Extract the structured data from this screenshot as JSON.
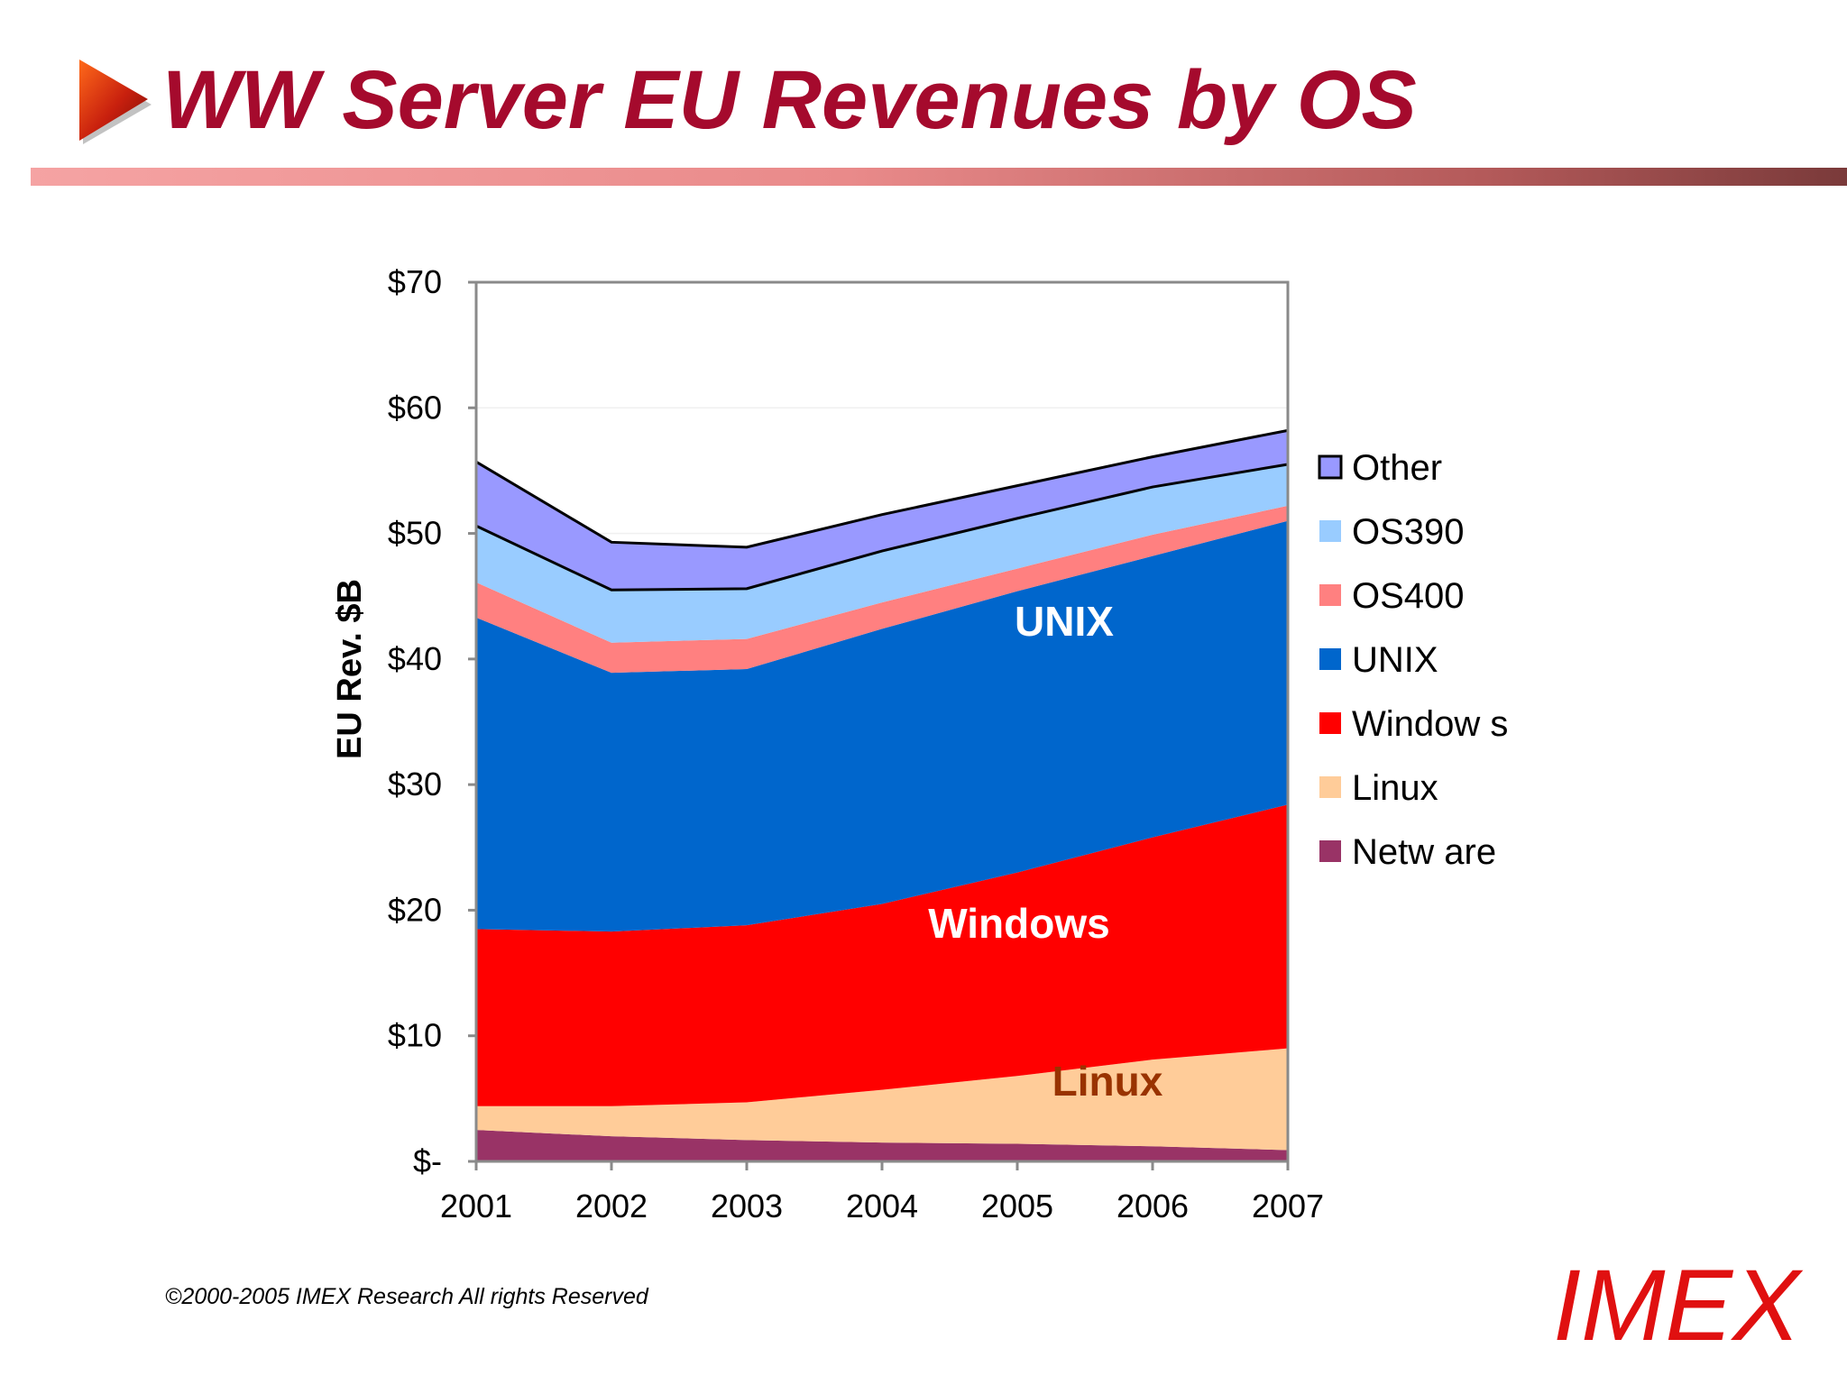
{
  "slide": {
    "title": "WW Server EU Revenues by OS",
    "copyright": "©2000-2005  IMEX Research All rights Reserved",
    "logo_text": "IMEX",
    "title_color": "#a50a2d",
    "logo_color": "#e01010",
    "arrow_icon": "play-triangle-icon"
  },
  "chart_data": {
    "type": "area",
    "stacked": true,
    "title": "",
    "xlabel": "",
    "ylabel": "EU Rev. $B",
    "x": [
      "2001",
      "2002",
      "2003",
      "2004",
      "2005",
      "2006",
      "2007"
    ],
    "ylim": [
      0,
      70
    ],
    "y_ticks": [
      0,
      10,
      20,
      30,
      40,
      50,
      60,
      70
    ],
    "y_tick_labels": [
      "$-",
      "$10",
      "$20",
      "$30",
      "$40",
      "$50",
      "$60",
      "$70"
    ],
    "grid": true,
    "legend_position": "right",
    "series": [
      {
        "name": "Netw are",
        "color": "#993366",
        "values": [
          2.5,
          2.0,
          1.7,
          1.5,
          1.4,
          1.2,
          0.9
        ]
      },
      {
        "name": "Linux",
        "color": "#ffcc99",
        "values": [
          1.9,
          2.4,
          3.0,
          4.2,
          5.4,
          6.9,
          8.1
        ]
      },
      {
        "name": "Window s",
        "color": "#ff0000",
        "values": [
          14.1,
          13.9,
          14.1,
          14.8,
          16.2,
          17.7,
          19.4
        ]
      },
      {
        "name": "UNIX",
        "color": "#0066cc",
        "values": [
          24.8,
          20.6,
          20.4,
          21.9,
          22.4,
          22.4,
          22.6
        ]
      },
      {
        "name": "OS400",
        "color": "#ff8080",
        "values": [
          2.8,
          2.4,
          2.4,
          2.1,
          1.8,
          1.7,
          1.2
        ]
      },
      {
        "name": "OS390",
        "color": "#99ccff",
        "values": [
          4.5,
          4.2,
          4.0,
          4.1,
          4.0,
          3.8,
          3.3
        ]
      },
      {
        "name": "Other",
        "color": "#9999ff",
        "values": [
          5.1,
          3.8,
          3.3,
          2.9,
          2.6,
          2.4,
          2.7
        ]
      }
    ],
    "annotations": [
      {
        "text": "UNIX",
        "color": "#ffffff"
      },
      {
        "text": "Windows",
        "color": "#ffffff"
      },
      {
        "text": "Linux",
        "color": "#993300"
      }
    ]
  }
}
